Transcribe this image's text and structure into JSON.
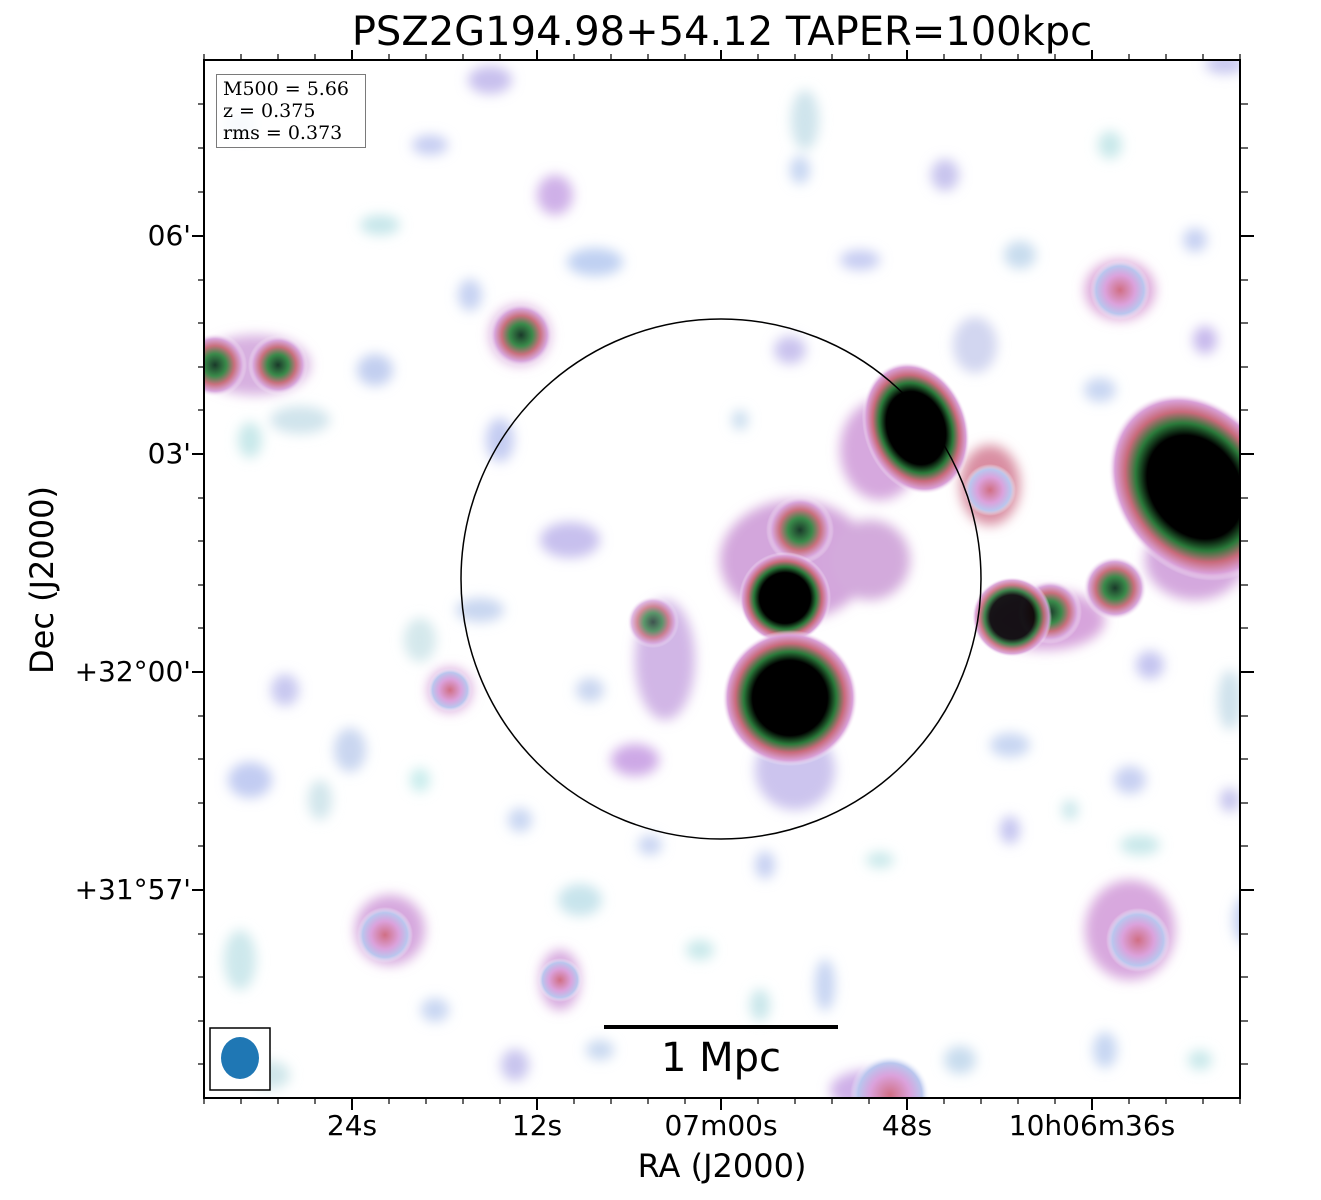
{
  "title": "PSZ2G194.98+54.12 TAPER=100kpc",
  "axes": {
    "x_label": "RA (J2000)",
    "y_label": "Dec (J2000)",
    "x_ticks": [
      "24s",
      "12s",
      "07m00s",
      "48s",
      "10h06m36s"
    ],
    "y_ticks": [
      "06'",
      "03'",
      "+32°00'",
      "+31°57'"
    ]
  },
  "info_box": {
    "m500": "M500 = 5.66",
    "z": "z = 0.375",
    "rms": "rms = 0.373"
  },
  "scale_bar": {
    "label": "1 Mpc"
  },
  "colors": {
    "beam": "#1f77b4",
    "frame": "#000000",
    "circle": "#000000"
  }
}
